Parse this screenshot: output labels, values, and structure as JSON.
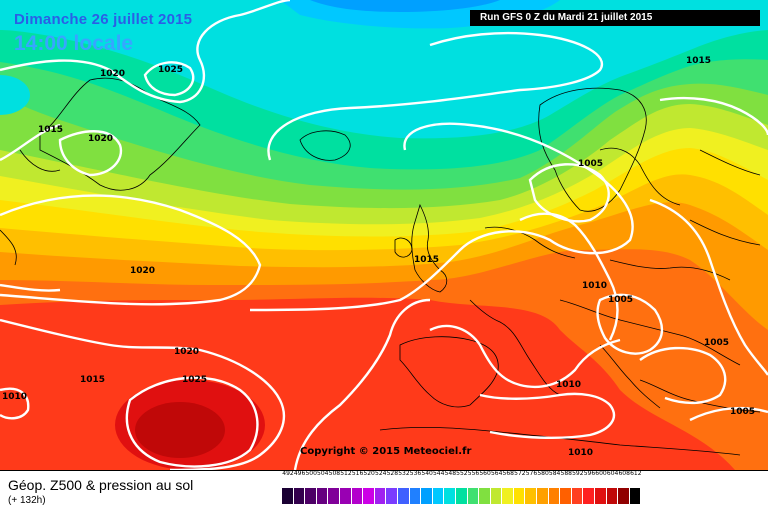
{
  "header": {
    "date_title": "Dimanche 26 juillet 2015",
    "time_title": "14:00 locale",
    "run_info": "Run GFS 0 Z du Mardi 21 juillet 2015"
  },
  "map": {
    "copyright": "Copyright © 2015 Meteociel.fr",
    "pressure_labels": [
      "1020",
      "1025",
      "1015",
      "1020",
      "1020",
      "1015",
      "1015",
      "1005",
      "1020",
      "1015",
      "1010",
      "1025",
      "1010",
      "1010",
      "1005",
      "1005",
      "1010",
      "1005"
    ],
    "colors": {
      "contour": "#ffffff",
      "coastline": "#000000"
    }
  },
  "footer": {
    "title": "Géop. Z500 & pression au sol",
    "subtitle": "(+ 132h)"
  },
  "scale": {
    "values": [
      "492",
      "496",
      "500",
      "504",
      "508",
      "512",
      "516",
      "520",
      "524",
      "528",
      "532",
      "536",
      "540",
      "544",
      "548",
      "552",
      "556",
      "560",
      "564",
      "568",
      "572",
      "576",
      "580",
      "584",
      "588",
      "592",
      "596",
      "600",
      "604",
      "608",
      "612"
    ],
    "colors": [
      "#1a0033",
      "#33004d",
      "#4d0066",
      "#660080",
      "#800099",
      "#9900b3",
      "#b300cc",
      "#cc00e6",
      "#a020f0",
      "#7a3cff",
      "#4060ff",
      "#2080ff",
      "#00a0ff",
      "#00c8ff",
      "#00e0e0",
      "#00e0a0",
      "#40e070",
      "#80e040",
      "#c0e830",
      "#f0f020",
      "#ffe000",
      "#ffc000",
      "#ffa000",
      "#ff8000",
      "#ff6000",
      "#ff4020",
      "#ff2020",
      "#e01010",
      "#c00808",
      "#900000",
      "#000000"
    ]
  }
}
